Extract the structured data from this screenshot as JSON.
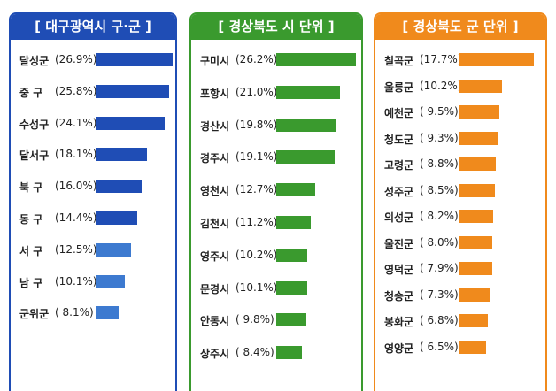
{
  "chart_data": [
    {
      "type": "bar",
      "title": "[ 대구광역시 구·군 ]",
      "color": "#1f4db5",
      "categories": [
        "달성군",
        "중 구",
        "수성구",
        "달서구",
        "북 구",
        "동 구",
        "서 구",
        "남 구",
        "군위군"
      ],
      "values": [
        26.9,
        25.8,
        24.1,
        18.1,
        16.0,
        14.4,
        12.5,
        10.1,
        8.1
      ],
      "value_labels": [
        "(26.9%)",
        "(25.8%)",
        "(24.1%)",
        "(18.1%)",
        "(16.0%)",
        "(14.4%)",
        "(12.5%)",
        "(10.1%)",
        "( 8.1%)"
      ]
    },
    {
      "type": "bar",
      "title": "[ 경상북도 시 단위 ]",
      "color": "#3a9a2e",
      "categories": [
        "구미시",
        "포항시",
        "경산시",
        "경주시",
        "영천시",
        "김천시",
        "영주시",
        "문경시",
        "안동시",
        "상주시"
      ],
      "values": [
        26.2,
        21.0,
        19.8,
        19.1,
        12.7,
        11.2,
        10.2,
        10.1,
        9.8,
        8.4
      ],
      "value_labels": [
        "(26.2%)",
        "(21.0%)",
        "(19.8%)",
        "(19.1%)",
        "(12.7%)",
        "(11.2%)",
        "(10.2%)",
        "(10.1%)",
        "( 9.8%)",
        "( 8.4%)"
      ]
    },
    {
      "type": "bar",
      "title": "[ 경상북도 군 단위 ]",
      "color": "#f08a1c",
      "categories": [
        "칠곡군",
        "울릉군",
        "예천군",
        "청도군",
        "고령군",
        "성주군",
        "의성군",
        "울진군",
        "영덕군",
        "청송군",
        "봉화군",
        "영양군"
      ],
      "values": [
        17.7,
        10.2,
        9.5,
        9.3,
        8.8,
        8.5,
        8.2,
        8.0,
        7.9,
        7.3,
        6.8,
        6.5
      ],
      "value_labels": [
        "(17.7%)",
        "(10.2%)",
        "( 9.5%)",
        "( 9.3%)",
        "( 8.8%)",
        "( 8.5%)",
        "( 8.2%)",
        "( 8.0%)",
        "( 7.9%)",
        "( 7.3%)",
        "( 6.8%)",
        "( 6.5%)"
      ]
    }
  ]
}
